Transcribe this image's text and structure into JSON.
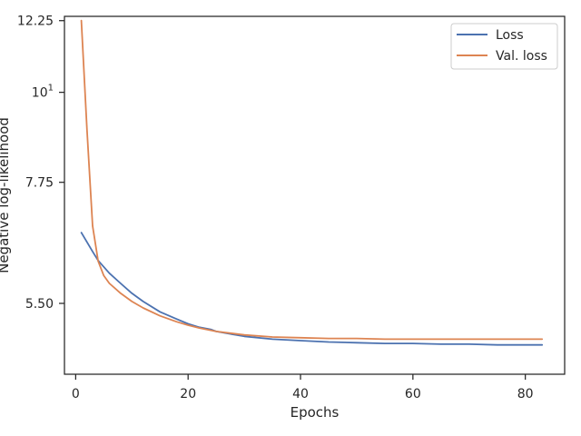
{
  "chart_data": {
    "type": "line",
    "xlabel": "Epochs",
    "ylabel": "Negative log-likelihood",
    "xlim": [
      -2,
      87
    ],
    "ylim": [
      4.5,
      12.4
    ],
    "yscale": "log",
    "x_ticks": [
      0,
      20,
      40,
      60,
      80
    ],
    "y_ticks": [
      {
        "value": 5.5,
        "label": "5.50"
      },
      {
        "value": 7.75,
        "label": "7.75"
      },
      {
        "value": 10,
        "label": "10",
        "exponent": "1"
      },
      {
        "value": 12.25,
        "label": "12.25"
      }
    ],
    "grid": false,
    "legend_position": "top-right",
    "series": [
      {
        "name": "Loss",
        "color": "#4c72b0",
        "x": [
          1,
          3,
          4,
          6,
          8,
          10,
          12,
          15,
          18,
          20,
          22,
          24,
          25,
          30,
          35,
          40,
          45,
          50,
          55,
          60,
          65,
          70,
          75,
          80,
          83
        ],
        "y": [
          6.72,
          6.37,
          6.21,
          5.99,
          5.82,
          5.66,
          5.53,
          5.37,
          5.26,
          5.19,
          5.14,
          5.11,
          5.08,
          5.01,
          4.97,
          4.95,
          4.93,
          4.92,
          4.91,
          4.91,
          4.9,
          4.9,
          4.89,
          4.89,
          4.89
        ]
      },
      {
        "name": "Val. loss",
        "color": "#dd8452",
        "x": [
          1,
          2,
          3,
          4,
          5,
          6,
          8,
          10,
          12,
          15,
          18,
          20,
          22,
          25,
          30,
          35,
          40,
          45,
          50,
          55,
          60,
          65,
          70,
          75,
          80,
          83
        ],
        "y": [
          12.25,
          9.0,
          6.85,
          6.2,
          5.95,
          5.82,
          5.66,
          5.53,
          5.43,
          5.31,
          5.22,
          5.17,
          5.13,
          5.08,
          5.03,
          5.0,
          4.99,
          4.98,
          4.98,
          4.97,
          4.97,
          4.97,
          4.97,
          4.97,
          4.97,
          4.97
        ]
      }
    ]
  }
}
